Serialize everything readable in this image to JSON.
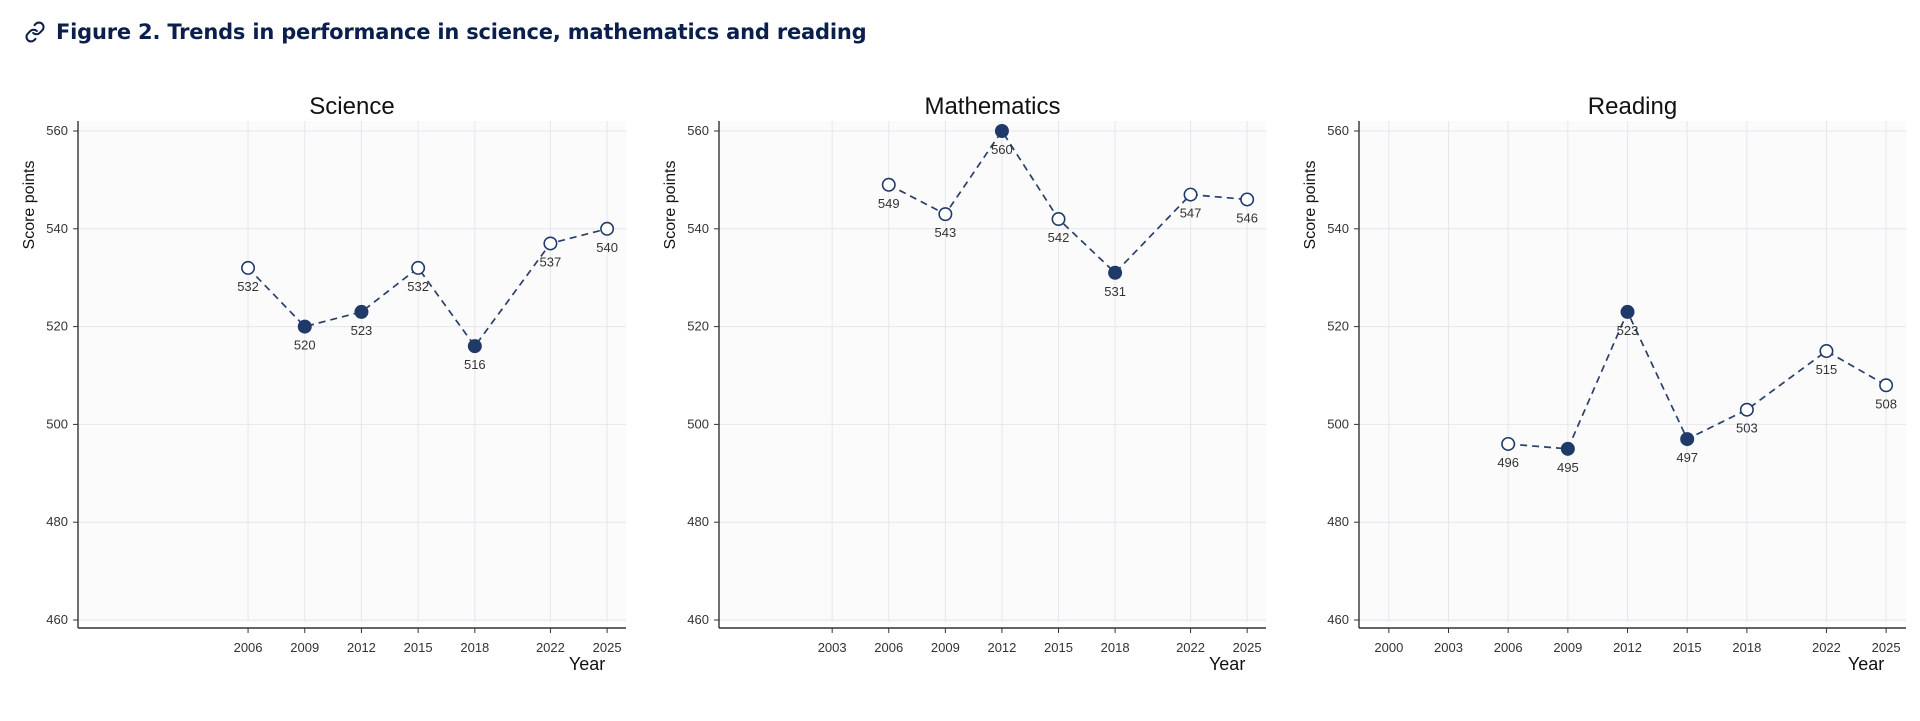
{
  "figure": {
    "title": "Figure 2. Trends in performance in science, mathematics and reading"
  },
  "colors": {
    "line": "#2a3f6a",
    "filled_marker": "#1f3a68",
    "open_marker_fill": "#ffffff",
    "plot_bg": "#fbfbfc",
    "grid": "#e6e7ea",
    "axis": "#333333",
    "title_text": "#0b1f4d"
  },
  "chart_data": [
    {
      "type": "line",
      "title": "Science",
      "xlabel": "Year",
      "ylabel": "Score points",
      "ylim": [
        460,
        560
      ],
      "yticks": [
        460,
        480,
        500,
        520,
        540,
        560
      ],
      "xlim": [
        1997,
        2026
      ],
      "xticks": [
        2006,
        2009,
        2012,
        2015,
        2018,
        2022,
        2025
      ],
      "grid": true,
      "series": [
        {
          "x": [
            2006,
            2009,
            2012,
            2015,
            2018,
            2022,
            2025
          ],
          "y": [
            532,
            520,
            523,
            532,
            516,
            537,
            540
          ],
          "labels": [
            "532",
            "520",
            "523",
            "532",
            "516",
            "537",
            "540"
          ],
          "filled": [
            false,
            true,
            true,
            false,
            true,
            false,
            false
          ]
        }
      ]
    },
    {
      "type": "line",
      "title": "Mathematics",
      "xlabel": "Year",
      "ylabel": "Score points",
      "ylim": [
        460,
        560
      ],
      "yticks": [
        460,
        480,
        500,
        520,
        540,
        560
      ],
      "xlim": [
        1997,
        2026
      ],
      "xticks": [
        2003,
        2006,
        2009,
        2012,
        2015,
        2018,
        2022,
        2025
      ],
      "grid": true,
      "series": [
        {
          "x": [
            2006,
            2009,
            2012,
            2015,
            2018,
            2022,
            2025
          ],
          "y": [
            549,
            543,
            560,
            542,
            531,
            547,
            546
          ],
          "labels": [
            "549",
            "543",
            "560",
            "542",
            "531",
            "547",
            "546"
          ],
          "filled": [
            false,
            false,
            true,
            false,
            true,
            false,
            false
          ]
        }
      ]
    },
    {
      "type": "line",
      "title": "Reading",
      "xlabel": "Year",
      "ylabel": "Score points",
      "ylim": [
        460,
        560
      ],
      "yticks": [
        460,
        480,
        500,
        520,
        540,
        560
      ],
      "xlim": [
        1998.5,
        2026
      ],
      "xticks": [
        2000,
        2003,
        2006,
        2009,
        2012,
        2015,
        2018,
        2022,
        2025
      ],
      "grid": true,
      "series": [
        {
          "x": [
            2006,
            2009,
            2012,
            2015,
            2018,
            2022,
            2025
          ],
          "y": [
            496,
            495,
            523,
            497,
            503,
            515,
            508
          ],
          "labels": [
            "496",
            "495",
            "523",
            "497",
            "503",
            "515",
            "508"
          ],
          "filled": [
            false,
            true,
            true,
            true,
            false,
            false,
            false
          ]
        }
      ]
    }
  ]
}
